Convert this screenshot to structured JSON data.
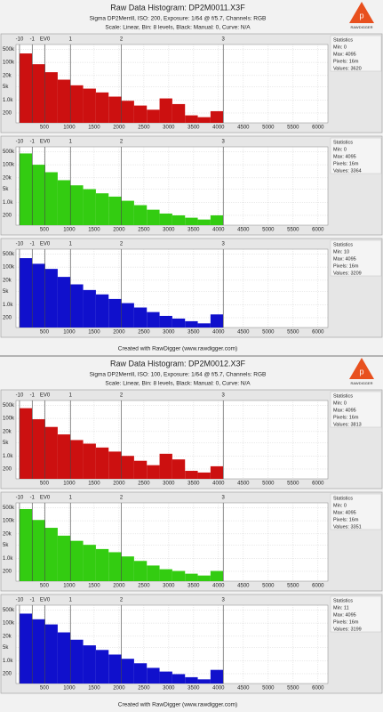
{
  "panels": [
    {
      "title": "Raw Data Histogram: DP2M0011.X3F",
      "subtitle": "Sigma DP2Merrill, ISO: 200, Exposure: 1/64 @ f/5.7, Channels: RGB",
      "settings": "Scale: Linear, Bin: 8 levels, Black: Manual: 0, Curve: N/A",
      "footer": "Created with RawDigger (www.rawdigger.com)",
      "logo": "RAWDIGGER"
    },
    {
      "title": "Raw Data Histogram: DP2M0012.X3F",
      "subtitle": "Sigma DP2Merrill, ISO: 100, Exposure: 1/64 @ f/5.7, Channels: RGB",
      "settings": "Scale: Linear, Bin: 8 levels, Black: Manual: 0, Curve: N/A",
      "footer": "Created with RawDigger (www.rawdigger.com)",
      "logo": "RAWDIGGER"
    }
  ],
  "chart_data": [
    {
      "type": "histogram",
      "color": "#cc1010",
      "bins": [
        0,
        256,
        512,
        768,
        1024,
        1280,
        1536,
        1792,
        2048,
        2304,
        2560,
        2816,
        3072,
        3328,
        3584,
        3840,
        4096
      ],
      "values": [
        300000,
        80000,
        30000,
        12000,
        6000,
        4000,
        2500,
        1500,
        900,
        500,
        300,
        1200,
        600,
        150,
        120,
        250
      ],
      "xlim": [
        -70,
        6200
      ],
      "xticks": [
        500,
        1000,
        1500,
        2000,
        2500,
        3000,
        3500,
        4000,
        4500,
        5000,
        5500,
        6000
      ],
      "x2ticks": [
        {
          "value": 0.5,
          "label": "-10"
        },
        {
          "value": 256,
          "label": "-1"
        },
        {
          "value": 512,
          "label": "EV0"
        },
        {
          "value": 1024,
          "label": "1"
        },
        {
          "value": 2048,
          "label": "2"
        },
        {
          "value": 4096,
          "label": "3"
        }
      ],
      "ylim": [
        60,
        900000
      ],
      "yticks": [
        {
          "value": 500000,
          "label": "500k"
        },
        {
          "value": 100000,
          "label": "100k"
        },
        {
          "value": 20000,
          "label": "20k"
        },
        {
          "value": 5000,
          "label": "5k"
        },
        {
          "value": 1000,
          "label": "1.0k"
        },
        200
      ],
      "log_y": true,
      "grid": true,
      "stats": {
        "title": "Statistics",
        "lines": [
          "Min: 0",
          "Max: 4095",
          "Pixels: 16m",
          "Values: 3620"
        ]
      }
    },
    {
      "type": "histogram",
      "color": "#33cc11",
      "bins": [
        0,
        256,
        512,
        768,
        1024,
        1280,
        1536,
        1792,
        2048,
        2304,
        2560,
        2816,
        3072,
        3328,
        3584,
        3840,
        4096
      ],
      "values": [
        400000,
        100000,
        40000,
        15000,
        8000,
        5000,
        3000,
        2000,
        1200,
        700,
        400,
        250,
        200,
        150,
        120,
        200
      ],
      "xlim": [
        -70,
        6200
      ],
      "xticks": [
        500,
        1000,
        1500,
        2000,
        2500,
        3000,
        3500,
        4000,
        4500,
        5000,
        5500,
        6000
      ],
      "x2ticks": [
        {
          "value": 0.5,
          "label": "-10"
        },
        {
          "value": 256,
          "label": "-1"
        },
        {
          "value": 512,
          "label": "EV0"
        },
        {
          "value": 1024,
          "label": "1"
        },
        {
          "value": 2048,
          "label": "2"
        },
        {
          "value": 4096,
          "label": "3"
        }
      ],
      "ylim": [
        60,
        900000
      ],
      "yticks": [
        {
          "value": 500000,
          "label": "500k"
        },
        {
          "value": 100000,
          "label": "100k"
        },
        {
          "value": 20000,
          "label": "20k"
        },
        {
          "value": 5000,
          "label": "5k"
        },
        {
          "value": 1000,
          "label": "1.0k"
        },
        200
      ],
      "log_y": true,
      "grid": true,
      "stats": {
        "title": "Statistics",
        "lines": [
          "Min: 0",
          "Max: 4095",
          "Pixels: 16m",
          "Values: 3364"
        ]
      }
    },
    {
      "type": "histogram",
      "color": "#1010cc",
      "bins": [
        0,
        256,
        512,
        768,
        1024,
        1280,
        1536,
        1792,
        2048,
        2304,
        2560,
        2816,
        3072,
        3328,
        3584,
        3840,
        4096
      ],
      "values": [
        300000,
        150000,
        80000,
        30000,
        12000,
        6000,
        3500,
        2000,
        1200,
        700,
        400,
        250,
        180,
        130,
        100,
        300
      ],
      "xlim": [
        -70,
        6200
      ],
      "xticks": [
        500,
        1000,
        1500,
        2000,
        2500,
        3000,
        3500,
        4000,
        4500,
        5000,
        5500,
        6000
      ],
      "x2ticks": [
        {
          "value": 0.5,
          "label": "-10"
        },
        {
          "value": 256,
          "label": "-1"
        },
        {
          "value": 512,
          "label": "EV0"
        },
        {
          "value": 1024,
          "label": "1"
        },
        {
          "value": 2048,
          "label": "2"
        },
        {
          "value": 4096,
          "label": "3"
        }
      ],
      "ylim": [
        60,
        900000
      ],
      "yticks": [
        {
          "value": 500000,
          "label": "500k"
        },
        {
          "value": 100000,
          "label": "100k"
        },
        {
          "value": 20000,
          "label": "20k"
        },
        {
          "value": 5000,
          "label": "5k"
        },
        {
          "value": 1000,
          "label": "1.0k"
        },
        200
      ],
      "log_y": true,
      "grid": true,
      "stats": {
        "title": "Statistics",
        "lines": [
          "Min: 10",
          "Max: 4095",
          "Pixels: 16m",
          "Values: 3209"
        ]
      }
    },
    {
      "type": "histogram",
      "color": "#cc1010",
      "bins": [
        0,
        256,
        512,
        768,
        1024,
        1280,
        1536,
        1792,
        2048,
        2304,
        2560,
        2816,
        3072,
        3328,
        3584,
        3840,
        4096
      ],
      "values": [
        350000,
        90000,
        35000,
        14000,
        7000,
        4500,
        2800,
        1700,
        1000,
        550,
        320,
        1300,
        650,
        160,
        130,
        280
      ],
      "xlim": [
        -70,
        6200
      ],
      "xticks": [
        500,
        1000,
        1500,
        2000,
        2500,
        3000,
        3500,
        4000,
        4500,
        5000,
        5500,
        6000
      ],
      "x2ticks": [
        {
          "value": 0.5,
          "label": "-10"
        },
        {
          "value": 256,
          "label": "-1"
        },
        {
          "value": 512,
          "label": "EV0"
        },
        {
          "value": 1024,
          "label": "1"
        },
        {
          "value": 2048,
          "label": "2"
        },
        {
          "value": 4096,
          "label": "3"
        }
      ],
      "ylim": [
        60,
        900000
      ],
      "yticks": [
        {
          "value": 500000,
          "label": "500k"
        },
        {
          "value": 100000,
          "label": "100k"
        },
        {
          "value": 20000,
          "label": "20k"
        },
        {
          "value": 5000,
          "label": "5k"
        },
        {
          "value": 1000,
          "label": "1.0k"
        },
        200
      ],
      "log_y": true,
      "grid": true,
      "stats": {
        "title": "Statistics",
        "lines": [
          "Min: 0",
          "Max: 4095",
          "Pixels: 16m",
          "Values: 3813"
        ]
      }
    },
    {
      "type": "histogram",
      "color": "#33cc11",
      "bins": [
        0,
        256,
        512,
        768,
        1024,
        1280,
        1536,
        1792,
        2048,
        2304,
        2560,
        2816,
        3072,
        3328,
        3584,
        3840,
        4096
      ],
      "values": [
        420000,
        110000,
        42000,
        16000,
        8500,
        5200,
        3100,
        2100,
        1250,
        720,
        410,
        260,
        210,
        150,
        120,
        210
      ],
      "xlim": [
        -70,
        6200
      ],
      "xticks": [
        500,
        1000,
        1500,
        2000,
        2500,
        3000,
        3500,
        4000,
        4500,
        5000,
        5500,
        6000
      ],
      "x2ticks": [
        {
          "value": 0.5,
          "label": "-10"
        },
        {
          "value": 256,
          "label": "-1"
        },
        {
          "value": 512,
          "label": "EV0"
        },
        {
          "value": 1024,
          "label": "1"
        },
        {
          "value": 2048,
          "label": "2"
        },
        {
          "value": 4096,
          "label": "3"
        }
      ],
      "ylim": [
        60,
        900000
      ],
      "yticks": [
        {
          "value": 500000,
          "label": "500k"
        },
        {
          "value": 100000,
          "label": "100k"
        },
        {
          "value": 20000,
          "label": "20k"
        },
        {
          "value": 5000,
          "label": "5k"
        },
        {
          "value": 1000,
          "label": "1.0k"
        },
        200
      ],
      "log_y": true,
      "grid": true,
      "stats": {
        "title": "Statistics",
        "lines": [
          "Min: 0",
          "Max: 4095",
          "Pixels: 16m",
          "Values: 3351"
        ]
      }
    },
    {
      "type": "histogram",
      "color": "#1010cc",
      "bins": [
        0,
        256,
        512,
        768,
        1024,
        1280,
        1536,
        1792,
        2048,
        2304,
        2560,
        2816,
        3072,
        3328,
        3584,
        3840,
        4096
      ],
      "values": [
        320000,
        160000,
        85000,
        32000,
        13000,
        6500,
        3700,
        2100,
        1250,
        720,
        410,
        260,
        190,
        130,
        100,
        320
      ],
      "xlim": [
        -70,
        6200
      ],
      "xticks": [
        500,
        1000,
        1500,
        2000,
        2500,
        3000,
        3500,
        4000,
        4500,
        5000,
        5500,
        6000
      ],
      "x2ticks": [
        {
          "value": 0.5,
          "label": "-10"
        },
        {
          "value": 256,
          "label": "-1"
        },
        {
          "value": 512,
          "label": "EV0"
        },
        {
          "value": 1024,
          "label": "1"
        },
        {
          "value": 2048,
          "label": "2"
        },
        {
          "value": 4096,
          "label": "3"
        }
      ],
      "ylim": [
        60,
        900000
      ],
      "yticks": [
        {
          "value": 500000,
          "label": "500k"
        },
        {
          "value": 100000,
          "label": "100k"
        },
        {
          "value": 20000,
          "label": "20k"
        },
        {
          "value": 5000,
          "label": "5k"
        },
        {
          "value": 1000,
          "label": "1.0k"
        },
        200
      ],
      "log_y": true,
      "grid": true,
      "stats": {
        "title": "Statistics",
        "lines": [
          "Min: 11",
          "Max: 4095",
          "Pixels: 16m",
          "Values: 3199"
        ]
      }
    }
  ]
}
